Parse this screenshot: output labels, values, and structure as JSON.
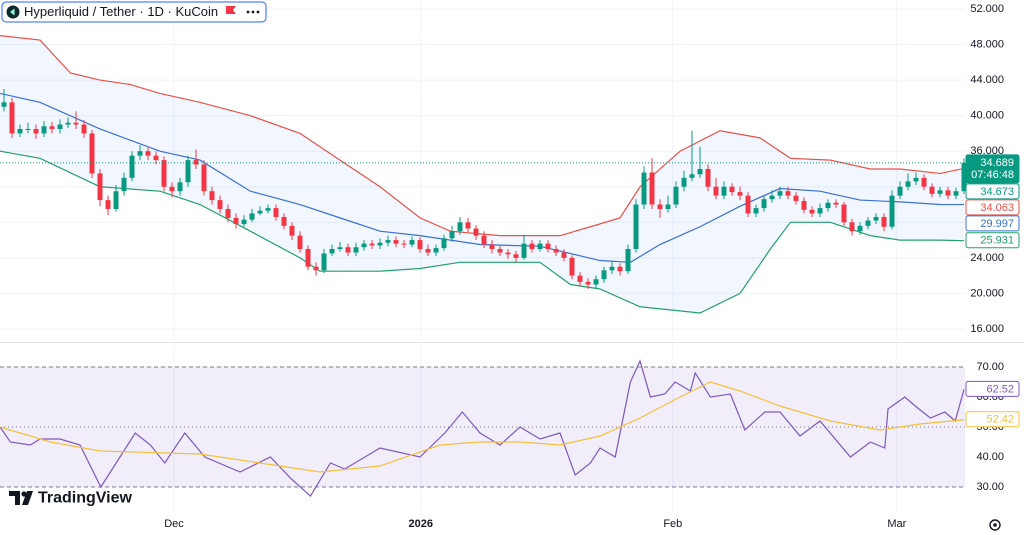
{
  "brand": "TradingView",
  "chart_data": [
    {
      "type": "candlestick",
      "title": "Hyperliquid / Tether · 1D · KuCoin",
      "up_color": "#089981",
      "down_color": "#f23645",
      "open": [
        41,
        41.5,
        38,
        38.5,
        38.5,
        38,
        38.8,
        38.5,
        39,
        39.2,
        39,
        38,
        33.5,
        30.5,
        29.5,
        31.5,
        33,
        35.5,
        36,
        35.5,
        35,
        32,
        31.5,
        32.5,
        35,
        34.5,
        31.5,
        30.5,
        29.5,
        28.5,
        27.8,
        28.3,
        29,
        29.3,
        29.6,
        28.6,
        27.6,
        26.5,
        25,
        23,
        22.6,
        24.5,
        25,
        25.2,
        24.6,
        25.2,
        25.6,
        25.4,
        25.7,
        26,
        25.6,
        25.5,
        26,
        25,
        24.6,
        25.1,
        26.2,
        27,
        28,
        27.3,
        26.5,
        25.5,
        25,
        24.6,
        24.4,
        24,
        25.6,
        25,
        25.6,
        25,
        24.6,
        24,
        22,
        21.3,
        21,
        21.6,
        22.6,
        23,
        22.5,
        25,
        30,
        33.6,
        30,
        29.5,
        30,
        32,
        33,
        33.4,
        34,
        32,
        31,
        32,
        31.4,
        31,
        29,
        29.6,
        30.6,
        31,
        31.5,
        31,
        30.4,
        29.4,
        29,
        29.6,
        30.2,
        30,
        28,
        27,
        27.6,
        28.2,
        28.6,
        27.5,
        31,
        32,
        32.6,
        33,
        32,
        31.2,
        31.6,
        31,
        31.5
      ],
      "high": [
        43,
        42,
        39,
        39.2,
        39,
        39.4,
        39.3,
        39.6,
        39.8,
        40.5,
        39.5,
        38.4,
        34,
        31,
        32.2,
        33.6,
        36,
        36.7,
        36.4,
        36,
        35.4,
        32.5,
        33,
        35.5,
        36.2,
        35,
        32,
        31,
        30,
        29,
        28.8,
        29.5,
        29.8,
        30,
        30,
        29,
        28,
        27,
        25.4,
        23.5,
        25,
        25.5,
        25.8,
        25.6,
        25.7,
        26,
        26,
        26.2,
        26.5,
        26.4,
        26,
        26.4,
        26.3,
        25.5,
        25.5,
        26.6,
        27.6,
        28.6,
        28.5,
        27.7,
        27,
        26,
        25.4,
        25,
        24.8,
        26.6,
        26,
        26,
        26,
        25.4,
        25,
        24.3,
        22.4,
        21.7,
        22,
        23,
        23.6,
        23.4,
        25.5,
        30.6,
        34.3,
        35.2,
        30.6,
        31,
        32.6,
        33.8,
        38.3,
        36.5,
        34.5,
        33,
        32.6,
        32.4,
        32,
        31.4,
        30,
        31,
        31.6,
        32,
        32,
        31.4,
        30.8,
        29.8,
        30.1,
        30.6,
        30.6,
        30.3,
        28.4,
        28,
        28.6,
        29,
        29,
        31.6,
        32.6,
        33.5,
        33.6,
        33.4,
        32.4,
        32,
        32,
        31.9,
        35.2
      ],
      "low": [
        40.5,
        37.5,
        37.6,
        38,
        37.4,
        37.6,
        38,
        38,
        38.6,
        38.5,
        37.5,
        33,
        29.8,
        28.8,
        29.2,
        31,
        32.6,
        35,
        35,
        34.5,
        31.5,
        30.8,
        31,
        32,
        34,
        31,
        30,
        29,
        28,
        27.3,
        27.5,
        28,
        28.8,
        29,
        28.2,
        27.2,
        26,
        24.6,
        22.6,
        22,
        22.3,
        24.2,
        24.7,
        24.2,
        24.2,
        24.8,
        25,
        25,
        25.3,
        25.2,
        25.1,
        25.2,
        24.6,
        24.2,
        24.2,
        24.8,
        25.8,
        26.6,
        26.9,
        26,
        25.1,
        24.5,
        24.2,
        23.9,
        23.5,
        23.8,
        24.6,
        24.7,
        24.6,
        24.2,
        23.6,
        21.6,
        20.8,
        20.5,
        20.6,
        21.2,
        22.2,
        22,
        22.2,
        24.6,
        29.5,
        29.5,
        28.5,
        29.1,
        29.6,
        31.5,
        32.6,
        33,
        31.5,
        30.6,
        30.6,
        31,
        30.5,
        28.6,
        28.6,
        29.2,
        30.2,
        30.6,
        30.6,
        30,
        29,
        28.6,
        28.6,
        29.2,
        29.6,
        27.6,
        26.5,
        26.6,
        27.2,
        27.8,
        27,
        27.2,
        30.6,
        31.6,
        32.2,
        31.6,
        30.8,
        30.8,
        30.6,
        30.6,
        31.2
      ],
      "close": [
        41.5,
        38,
        38.5,
        38.5,
        38,
        38.8,
        38.5,
        39,
        39.2,
        39,
        38,
        33.5,
        30.5,
        29.5,
        31.5,
        33,
        35.5,
        36,
        35.5,
        35,
        32,
        31.5,
        32.5,
        35,
        34.5,
        31.5,
        30.5,
        29.5,
        28.5,
        27.8,
        28.3,
        29,
        29.3,
        29.6,
        28.6,
        27.6,
        26.5,
        25,
        23,
        22.6,
        24.5,
        25,
        25.2,
        24.6,
        25.2,
        25.6,
        25.4,
        25.7,
        26,
        25.6,
        25.5,
        26,
        25,
        24.6,
        25.1,
        26.2,
        27,
        28,
        27.3,
        26.5,
        25.5,
        25,
        24.6,
        24.4,
        24,
        25.6,
        25,
        25.6,
        25,
        24.6,
        24,
        22,
        21.3,
        21,
        21.6,
        22.6,
        23,
        22.5,
        25,
        30,
        33.6,
        30,
        29.5,
        30,
        32,
        33,
        33.4,
        34,
        32,
        31,
        32,
        31.4,
        31,
        29,
        29.6,
        30.6,
        31,
        31.5,
        31,
        30.4,
        29.4,
        29,
        29.6,
        30.2,
        30,
        28,
        27,
        27.6,
        28.2,
        28.6,
        27.5,
        31,
        32,
        32.6,
        33,
        32,
        31.2,
        31.6,
        31,
        31.5,
        34.689
      ],
      "countdown": "07:46:48",
      "markers": [
        34.673
      ],
      "fill_color": "#2962ff",
      "series": [
        {
          "color": "#e5534b",
          "x": [
            -0.5,
            4.5,
            8.3,
            12,
            15.8,
            19.5,
            24.5,
            30.8,
            37,
            42,
            47,
            52,
            55.8,
            62,
            69.5,
            73.3,
            77,
            79.5,
            84.5,
            89.5,
            94.5,
            98.3,
            103.3,
            108.3,
            112,
            117,
            120
          ],
          "values": [
            49,
            48.5,
            44.8,
            44,
            43.5,
            42.5,
            41.5,
            40,
            38,
            35,
            32,
            28.5,
            27,
            26.5,
            26.5,
            27.5,
            28.5,
            32,
            36,
            38.3,
            37.5,
            35.2,
            35,
            34,
            34,
            33.5,
            34.063
          ]
        },
        {
          "color": "#3b6fd4",
          "x": [
            -0.5,
            4.5,
            12,
            19.5,
            24.5,
            30.8,
            37,
            42,
            47,
            52,
            59.5,
            67,
            74.5,
            78.3,
            82,
            87,
            92,
            97,
            102,
            107,
            112,
            117,
            120
          ],
          "values": [
            42.5,
            41.5,
            38.5,
            36,
            35,
            31.5,
            30,
            28.5,
            27,
            26.5,
            25.5,
            25.3,
            23.7,
            23.5,
            25.5,
            27.5,
            29.8,
            31.8,
            31.5,
            30.5,
            30.3,
            30,
            29.997
          ]
        },
        {
          "color": "#22a06b",
          "x": [
            -0.5,
            4.5,
            12,
            19.5,
            24.5,
            30.8,
            37,
            39.5,
            47,
            52,
            57,
            67,
            70.8,
            74.5,
            79.5,
            87,
            92,
            95.8,
            98.3,
            103.3,
            108.3,
            112,
            117,
            120
          ],
          "values": [
            36,
            35.2,
            32,
            31.5,
            30,
            27,
            24,
            22.5,
            22.5,
            22.8,
            23.5,
            23.5,
            21,
            20.5,
            18.5,
            17.8,
            20,
            25,
            28,
            28,
            26.5,
            26,
            26,
            25.931
          ]
        }
      ],
      "xlim": [
        -0.5,
        120.125
      ],
      "xticks": [
        {
          "value": 21.25,
          "label": "Dec"
        },
        {
          "value": 52.1,
          "label": "2026"
        },
        {
          "value": 83.6,
          "label": "Feb"
        },
        {
          "value": 111.6,
          "label": "Mar"
        }
      ],
      "ylim": [
        14.76,
        53.01
      ],
      "yticks": [
        {
          "value": 16,
          "label": "16.000"
        },
        {
          "value": 20,
          "label": "20.000"
        },
        {
          "value": 24,
          "label": "24.000"
        },
        {
          "value": 28,
          "label": "28.000"
        },
        {
          "value": 32,
          "label": "32.000"
        },
        {
          "value": 36,
          "label": "36.000"
        },
        {
          "value": 40,
          "label": "40.000"
        },
        {
          "value": 44,
          "label": "44.000"
        },
        {
          "value": 48,
          "label": "48.000"
        },
        {
          "value": 52,
          "label": "52.000"
        }
      ],
      "grid": true
    },
    {
      "type": "line",
      "series": [
        {
          "color": "#7e57c2",
          "x": [
            -0.5,
            0.8,
            3.3,
            4.5,
            7,
            9.5,
            12.1,
            14.5,
            16.4,
            18.3,
            20.1,
            22.6,
            25.1,
            29.5,
            33.3,
            35.8,
            38.3,
            40.8,
            42.6,
            47,
            52,
            55.1,
            57.3,
            59.5,
            62,
            64.5,
            67,
            69.5,
            71.4,
            73.3,
            74.5,
            76.4,
            78.3,
            79.5,
            80.8,
            82.6,
            83.9,
            85.8,
            86.4,
            88.3,
            90.8,
            92.6,
            95.1,
            97,
            99.5,
            102,
            105.8,
            108.3,
            110.1,
            110.5,
            112.6,
            113.9,
            115.8,
            117.6,
            118.9,
            120
          ],
          "values": [
            50,
            45,
            44,
            46,
            46,
            44,
            30,
            40,
            48,
            44,
            38,
            48,
            40,
            35,
            40,
            33,
            27,
            38,
            36,
            43,
            40,
            48,
            55,
            48,
            44,
            50,
            46,
            48,
            34,
            38,
            43,
            40,
            65,
            72,
            60,
            61,
            65,
            62,
            68,
            60,
            61,
            49,
            55,
            55,
            47,
            52,
            40,
            45,
            43,
            56,
            60,
            57,
            53,
            55,
            52,
            62.52
          ]
        },
        {
          "color": "#f2c23c",
          "x": [
            -0.5,
            5.8,
            12,
            24.5,
            34.5,
            39.5,
            47,
            54.5,
            59.5,
            64.5,
            69.5,
            74.5,
            79.5,
            84.5,
            88.3,
            92,
            97,
            103.3,
            109.5,
            114.5,
            120
          ],
          "values": [
            50,
            45,
            42,
            41,
            37,
            35,
            37,
            44,
            45,
            45,
            44,
            47,
            53,
            60,
            65,
            62,
            57,
            52,
            49,
            51,
            52.42
          ]
        }
      ],
      "levels": [
        70,
        50,
        30
      ],
      "level_fill": "#7e57c2",
      "ylim": [
        21.67,
        77.33
      ],
      "yticks": [
        {
          "value": 30,
          "label": "30.00"
        },
        {
          "value": 40,
          "label": "40.00"
        },
        {
          "value": 50,
          "label": "50.00"
        },
        {
          "value": 60,
          "label": "60.00"
        },
        {
          "value": 70,
          "label": "70.00"
        }
      ]
    }
  ]
}
